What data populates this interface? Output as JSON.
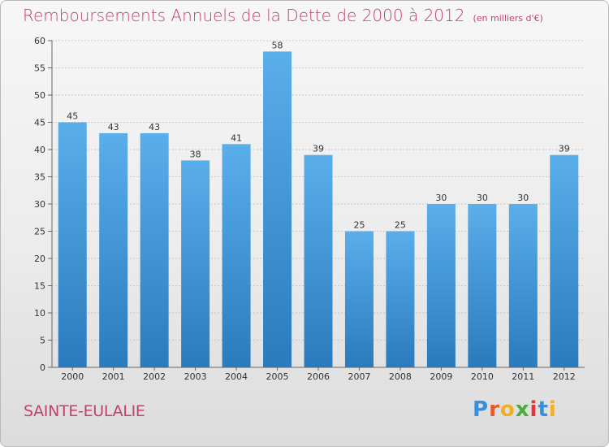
{
  "title": "Remboursements Annuels de la Dette de 2000 à 2012",
  "unit_note": "(en milliers d'€)",
  "commune": "SAINTE-EULALIE",
  "logo": {
    "text": "Proxiti",
    "letter_colors": [
      "#3a8ee0",
      "#e55a2b",
      "#f0b020",
      "#4aae3f",
      "#e0373d",
      "#3a8ee0",
      "#f0b020"
    ]
  },
  "colors": {
    "title": "#c23f6e",
    "bar_top": "#5aaeea",
    "bar_bottom": "#2a7bbd",
    "grid": "#c8c8c8"
  },
  "chart_data": {
    "type": "bar",
    "categories": [
      "2000",
      "2001",
      "2002",
      "2003",
      "2004",
      "2005",
      "2006",
      "2007",
      "2008",
      "2009",
      "2010",
      "2011",
      "2012"
    ],
    "values": [
      45,
      43,
      43,
      38,
      41,
      58,
      39,
      25,
      25,
      30,
      30,
      30,
      39
    ],
    "ylim": [
      0,
      60
    ],
    "yticks": [
      0,
      5,
      10,
      15,
      20,
      25,
      30,
      35,
      40,
      45,
      50,
      55,
      60
    ],
    "grid": true,
    "data_labels": true
  }
}
